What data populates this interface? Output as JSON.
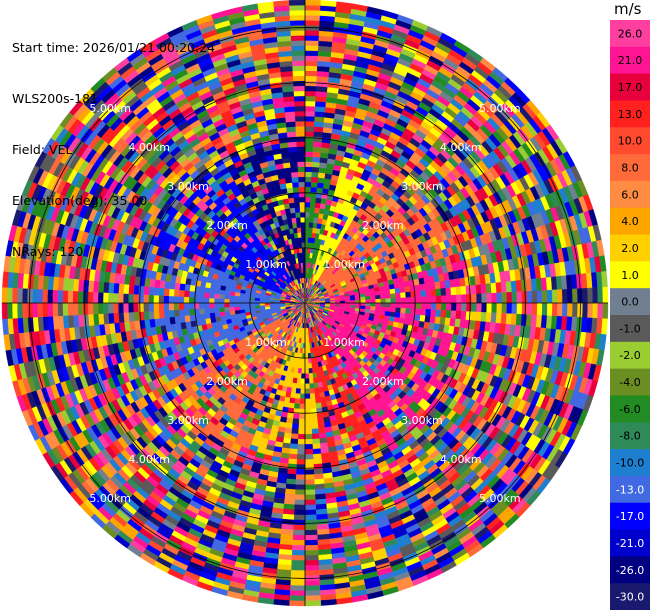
{
  "info": {
    "start_time": "Start time: 2026/01/21 00:20:24",
    "instrument": "WLS200s-181",
    "field": "Field: VEL",
    "elevation": "Elevation(deg): 35.00",
    "nrays": "NRays: 120"
  },
  "colorbar": {
    "unit": "m/s",
    "labels": [
      "26.0",
      "21.0",
      "17.0",
      "13.0",
      "10.0",
      "8.0",
      "6.0",
      "4.0",
      "2.0",
      "1.0",
      "0.0",
      "-1.0",
      "-2.0",
      "-4.0",
      "-6.0",
      "-8.0",
      "-10.0",
      "-13.0",
      "-17.0",
      "-21.0",
      "-26.0",
      "-30.0"
    ],
    "colors": [
      "#ff3fa0",
      "#ff1493",
      "#e8003c",
      "#ff2020",
      "#ff4a30",
      "#ff6a3a",
      "#ff8c42",
      "#ffa500",
      "#ffd000",
      "#ffff00",
      "#708090",
      "#5a5a5a",
      "#9acd32",
      "#6b8e23",
      "#228b22",
      "#2e8b57",
      "#1e7fd0",
      "#4169e1",
      "#0000ff",
      "#0000cd",
      "#000080",
      "#191970"
    ]
  },
  "chart_data": {
    "type": "ppi",
    "field": "VEL",
    "units": "m/s",
    "nrays": 120,
    "elevation_deg": 35.0,
    "max_range_km": 5.5,
    "range_ring_labels": [
      "1.00km",
      "2.00km",
      "3.00km",
      "4.00km",
      "5.00km"
    ],
    "range_rings_km": [
      1,
      2,
      3,
      4,
      5
    ],
    "label_bearings_deg": [
      -45,
      45,
      135,
      -135
    ],
    "value_range": [
      -30,
      26
    ]
  }
}
